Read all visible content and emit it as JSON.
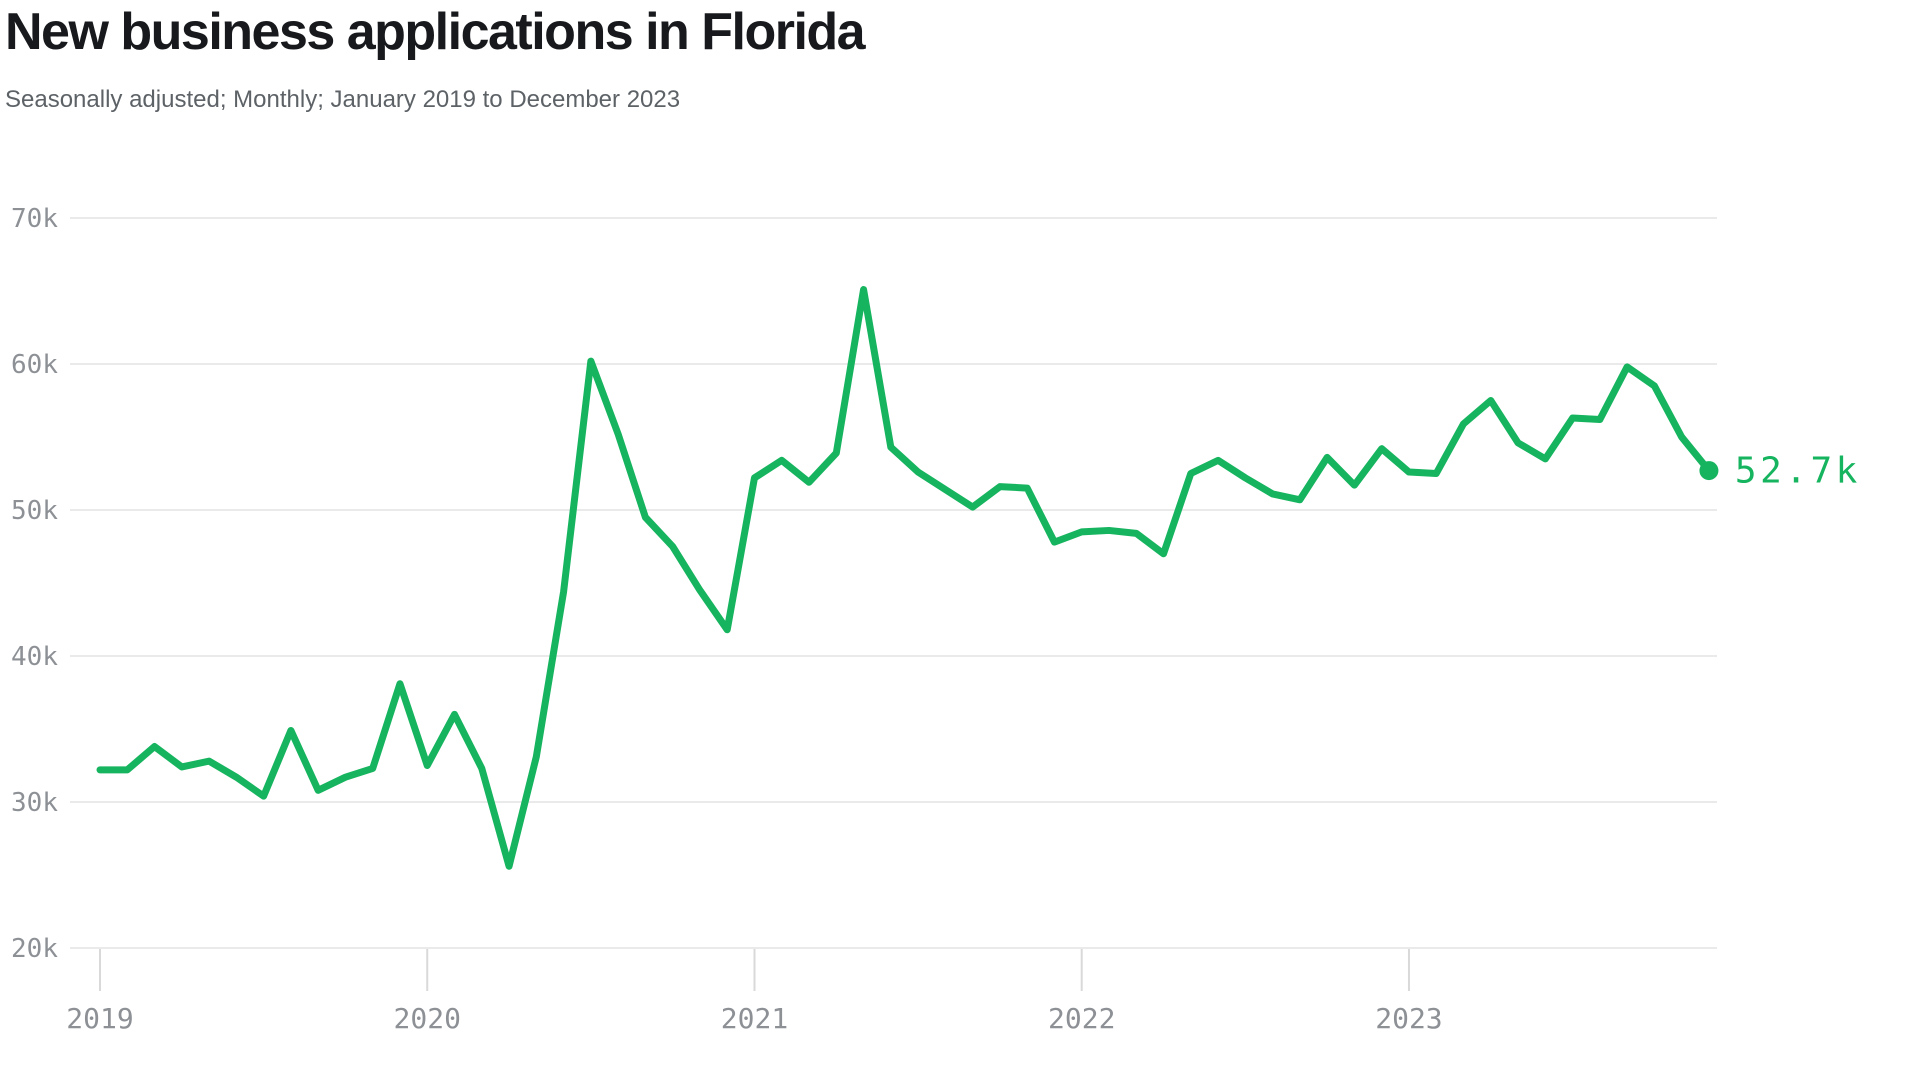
{
  "header": {
    "title": "New business applications in Florida",
    "subtitle": "Seasonally adjusted; Monthly; January 2019 to December 2023"
  },
  "chart_data": {
    "type": "line",
    "title": "New business applications in Florida",
    "subtitle": "Seasonally adjusted; Monthly; January 2019 to December 2023",
    "unit": "thousands of applications",
    "frequency": "Monthly",
    "adjustment": "Seasonally adjusted",
    "grid": "horizontal",
    "legend_position": "none",
    "ylim": [
      20,
      70
    ],
    "y_ticks": [
      {
        "value": 70,
        "label": "70k"
      },
      {
        "value": 60,
        "label": "60k"
      },
      {
        "value": 50,
        "label": "50k"
      },
      {
        "value": 40,
        "label": "40k"
      },
      {
        "value": 30,
        "label": "30k"
      },
      {
        "value": 20,
        "label": "20k"
      }
    ],
    "x_ticks": [
      {
        "month_index": 0,
        "label": "2019"
      },
      {
        "month_index": 12,
        "label": "2020"
      },
      {
        "month_index": 24,
        "label": "2021"
      },
      {
        "month_index": 36,
        "label": "2022"
      },
      {
        "month_index": 48,
        "label": "2023"
      }
    ],
    "x": [
      "2019-01",
      "2019-02",
      "2019-03",
      "2019-04",
      "2019-05",
      "2019-06",
      "2019-07",
      "2019-08",
      "2019-09",
      "2019-10",
      "2019-11",
      "2019-12",
      "2020-01",
      "2020-02",
      "2020-03",
      "2020-04",
      "2020-05",
      "2020-06",
      "2020-07",
      "2020-08",
      "2020-09",
      "2020-10",
      "2020-11",
      "2020-12",
      "2021-01",
      "2021-02",
      "2021-03",
      "2021-04",
      "2021-05",
      "2021-06",
      "2021-07",
      "2021-08",
      "2021-09",
      "2021-10",
      "2021-11",
      "2021-12",
      "2022-01",
      "2022-02",
      "2022-03",
      "2022-04",
      "2022-05",
      "2022-06",
      "2022-07",
      "2022-08",
      "2022-09",
      "2022-10",
      "2022-11",
      "2022-12",
      "2023-01",
      "2023-02",
      "2023-03",
      "2023-04",
      "2023-05",
      "2023-06",
      "2023-07",
      "2023-08",
      "2023-09",
      "2023-10",
      "2023-11",
      "2023-12"
    ],
    "series": [
      {
        "name": "New business applications (thousands)",
        "values": [
          32.2,
          32.2,
          33.8,
          32.4,
          32.8,
          31.7,
          30.4,
          34.9,
          30.8,
          31.7,
          32.3,
          38.1,
          32.5,
          36.0,
          32.3,
          25.6,
          33.1,
          44.4,
          60.2,
          55.2,
          49.5,
          47.5,
          44.5,
          41.8,
          52.2,
          53.4,
          51.9,
          53.9,
          65.1,
          54.3,
          52.6,
          51.4,
          50.2,
          51.6,
          51.5,
          47.8,
          48.5,
          48.6,
          48.4,
          47.0,
          52.5,
          53.4,
          52.2,
          51.1,
          50.7,
          53.6,
          51.7,
          54.2,
          52.6,
          52.5,
          55.9,
          57.5,
          54.6,
          53.5,
          56.3,
          56.2,
          59.8,
          58.5,
          55.0,
          52.7
        ]
      }
    ],
    "end_label": "52.7k",
    "end_value": 52.7,
    "line_color": "#16b45f",
    "grid_color": "#e3e3e3",
    "tick_color": "#d9d9d9",
    "axis_label_color": "#8d9196"
  }
}
